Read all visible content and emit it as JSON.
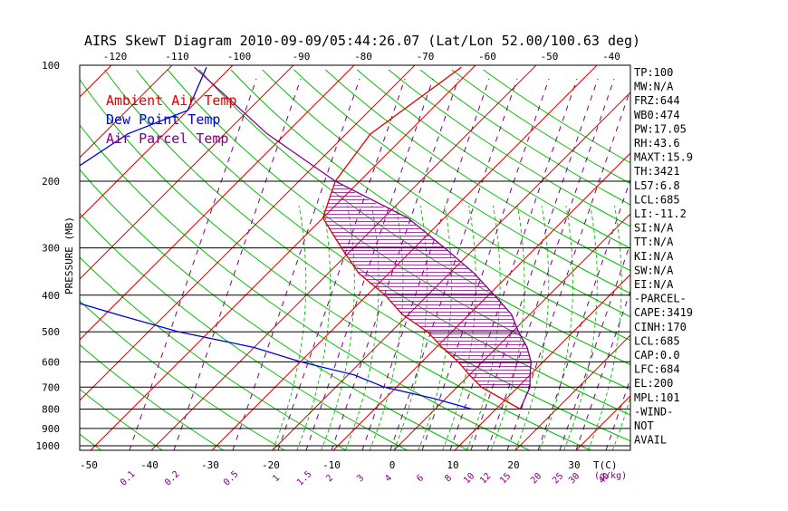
{
  "chart_data": {
    "type": "line",
    "title": "AIRS SkewT Diagram 2010-09-09/05:44:26.07 (Lat/Lon 52.00/100.63 deg)",
    "ylabel": "PRESSURE (MB)",
    "xlabel": "T(C)",
    "mixing_label": "(g/kg)",
    "x_range_c": [
      -52,
      40
    ],
    "y_range_mb": [
      100,
      1050
    ],
    "top_axis_ticks": [
      -120,
      -110,
      -100,
      -90,
      -80,
      -70,
      -60,
      -50,
      -40
    ],
    "bottom_axis_ticks": [
      -50,
      -40,
      -30,
      -20,
      -10,
      0,
      10,
      20,
      30
    ],
    "pressure_ticks": [
      100,
      200,
      300,
      400,
      500,
      600,
      700,
      800,
      900,
      1000
    ],
    "mixing_ratio_ticks": [
      "0.1",
      "0.2",
      "0.5",
      "1",
      "1.5",
      "2",
      "3",
      "4",
      "6",
      "8",
      "10",
      "12",
      "15",
      "20",
      "25",
      "30",
      "40"
    ],
    "legend": [
      {
        "label": "Ambient Air Temp",
        "color": "#e00000"
      },
      {
        "label": "Dew Point Temp",
        "color": "#0000e0"
      },
      {
        "label": "Air Parcel Temp",
        "color": "#800080"
      }
    ],
    "series": [
      {
        "name": "Ambient Air Temp",
        "color": "#e00000",
        "points": [
          [
            100,
            -52
          ],
          [
            150,
            -56
          ],
          [
            200,
            -54
          ],
          [
            250,
            -50
          ],
          [
            300,
            -42
          ],
          [
            350,
            -35
          ],
          [
            400,
            -27
          ],
          [
            450,
            -21
          ],
          [
            500,
            -14
          ],
          [
            550,
            -9
          ],
          [
            600,
            -4
          ],
          [
            650,
            0
          ],
          [
            700,
            4
          ],
          [
            800,
            14
          ]
        ]
      },
      {
        "name": "Dew Point Temp",
        "color": "#0000e0",
        "points": [
          [
            100,
            -94
          ],
          [
            130,
            -90
          ],
          [
            150,
            -96
          ],
          [
            200,
            -100
          ],
          [
            250,
            -98
          ],
          [
            300,
            -93
          ],
          [
            350,
            -85
          ],
          [
            400,
            -82
          ],
          [
            450,
            -68
          ],
          [
            500,
            -55
          ],
          [
            550,
            -40
          ],
          [
            600,
            -30
          ],
          [
            650,
            -19
          ],
          [
            700,
            -12
          ],
          [
            750,
            -2
          ],
          [
            800,
            6
          ]
        ]
      },
      {
        "name": "Air Parcel Temp",
        "color": "#800080",
        "points": [
          [
            100,
            -96
          ],
          [
            150,
            -73
          ],
          [
            200,
            -54
          ],
          [
            250,
            -36
          ],
          [
            300,
            -25
          ],
          [
            350,
            -16
          ],
          [
            400,
            -9
          ],
          [
            450,
            -3
          ],
          [
            500,
            1
          ],
          [
            550,
            5
          ],
          [
            600,
            8
          ],
          [
            650,
            10
          ],
          [
            700,
            12
          ],
          [
            800,
            14
          ]
        ]
      }
    ]
  },
  "panel": [
    "TP:100",
    "MW:N/A",
    "FRZ:644",
    "WB0:474",
    "PW:17.05",
    "RH:43.6",
    "MAXT:15.9",
    "TH:3421",
    "L57:6.8",
    "LCL:685",
    "LI:-11.2",
    "SI:N/A",
    "TT:N/A",
    "KI:N/A",
    "SW:N/A",
    "EI:N/A",
    "-PARCEL-",
    "CAPE:3419",
    "CINH:170",
    "LCL:685",
    "CAP:0.0",
    "LFC:684",
    "EL:200",
    "MPL:101",
    "-WIND-",
    "NOT",
    "AVAIL"
  ],
  "colors": {
    "isotherm": "#e00000",
    "dry_adiabat": "#00c000",
    "moist_adiabat": "#00c000",
    "mixing_line": "#800080",
    "dewpoint": "#0000e0",
    "parcel": "#800080",
    "cape_hatch": "#800080"
  }
}
